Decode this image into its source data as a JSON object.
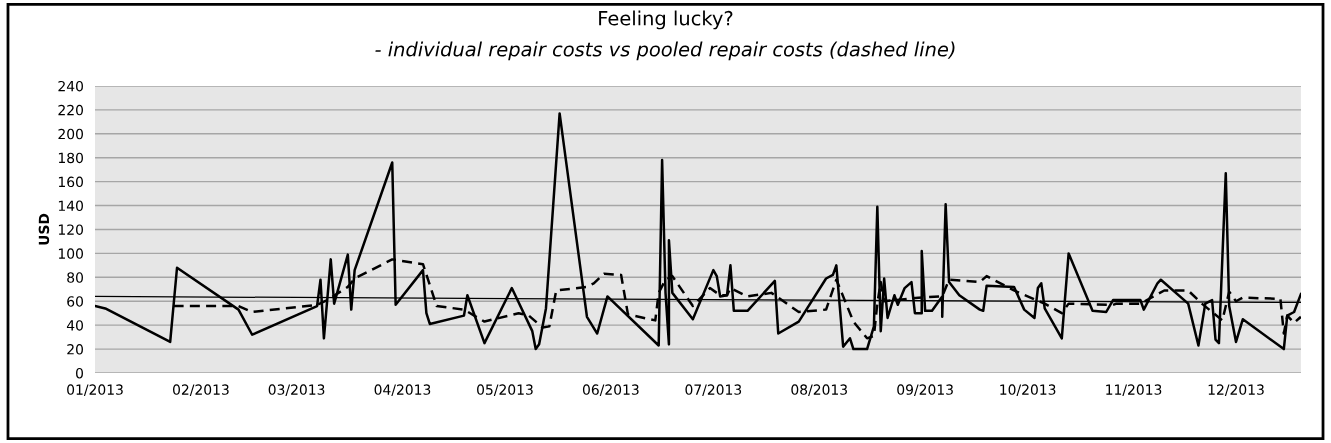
{
  "chart_data": {
    "type": "line",
    "title": "Feeling lucky?",
    "subtitle": "- individual repair costs vs pooled repair costs (dashed line)",
    "ylabel": "USD",
    "xlim": [
      "2013-01-01",
      "2013-12-20"
    ],
    "xticks": [
      {
        "value": "2013-01-01",
        "label": "01/2013"
      },
      {
        "value": "2013-02-01",
        "label": "02/2013"
      },
      {
        "value": "2013-03-01",
        "label": "03/2013"
      },
      {
        "value": "2013-04-01",
        "label": "04/2013"
      },
      {
        "value": "2013-05-01",
        "label": "05/2013"
      },
      {
        "value": "2013-06-01",
        "label": "06/2013"
      },
      {
        "value": "2013-07-01",
        "label": "07/2013"
      },
      {
        "value": "2013-08-01",
        "label": "08/2013"
      },
      {
        "value": "2013-09-01",
        "label": "09/2013"
      },
      {
        "value": "2013-10-01",
        "label": "10/2013"
      },
      {
        "value": "2013-11-01",
        "label": "11/2013"
      },
      {
        "value": "2013-12-01",
        "label": "12/2013"
      }
    ],
    "ylim": [
      0,
      240
    ],
    "yticks": [
      0,
      20,
      40,
      60,
      80,
      100,
      120,
      140,
      160,
      180,
      200,
      220,
      240
    ],
    "grid": "y",
    "legend": false,
    "series": [
      {
        "color": "#000000",
        "line_style": "solid",
        "x": [
          "2013-01-01",
          "2013-01-04",
          "2013-01-23",
          "2013-01-25",
          "2013-02-12",
          "2013-02-16",
          "2013-03-07",
          "2013-03-08",
          "2013-03-09",
          "2013-03-11",
          "2013-03-12",
          "2013-03-16",
          "2013-03-17",
          "2013-03-18",
          "2013-03-29",
          "2013-03-30",
          "2013-04-07",
          "2013-04-08",
          "2013-04-09",
          "2013-04-19",
          "2013-04-20",
          "2013-04-25",
          "2013-05-03",
          "2013-05-09",
          "2013-05-10",
          "2013-05-11",
          "2013-05-13",
          "2013-05-17",
          "2013-05-25",
          "2013-05-28",
          "2013-05-31",
          "2013-06-15",
          "2013-06-16",
          "2013-06-17",
          "2013-06-18",
          "2013-06-18",
          "2013-06-19",
          "2013-06-25",
          "2013-07-01",
          "2013-07-02",
          "2013-07-03",
          "2013-07-05",
          "2013-07-06",
          "2013-07-07",
          "2013-07-11",
          "2013-07-19",
          "2013-07-20",
          "2013-07-26",
          "2013-08-03",
          "2013-08-05",
          "2013-08-06",
          "2013-08-07",
          "2013-08-08",
          "2013-08-10",
          "2013-08-11",
          "2013-08-15",
          "2013-08-17",
          "2013-08-18",
          "2013-08-19",
          "2013-08-20",
          "2013-08-21",
          "2013-08-23",
          "2013-08-24",
          "2013-08-26",
          "2013-08-28",
          "2013-08-29",
          "2013-08-31",
          "2013-08-31",
          "2013-09-01",
          "2013-09-03",
          "2013-09-06",
          "2013-09-06",
          "2013-09-07",
          "2013-09-08",
          "2013-09-11",
          "2013-09-17",
          "2013-09-18",
          "2013-09-19",
          "2013-09-27",
          "2013-09-30",
          "2013-10-03",
          "2013-10-04",
          "2013-10-05",
          "2013-10-06",
          "2013-10-11",
          "2013-10-13",
          "2013-10-20",
          "2013-10-24",
          "2013-10-26",
          "2013-11-03",
          "2013-11-04",
          "2013-11-08",
          "2013-11-09",
          "2013-11-17",
          "2013-11-20",
          "2013-11-22",
          "2013-11-24",
          "2013-11-25",
          "2013-11-26",
          "2013-11-28",
          "2013-11-29",
          "2013-12-01",
          "2013-12-03",
          "2013-12-15",
          "2013-12-16",
          "2013-12-18",
          "2013-12-20"
        ],
        "values": [
          56,
          54,
          26,
          88,
          53,
          32,
          56,
          78,
          29,
          95,
          58,
          99,
          53,
          86,
          176,
          57,
          86,
          50,
          41,
          48,
          65,
          25,
          71,
          35,
          20,
          24,
          54,
          217,
          47,
          33,
          64,
          23,
          178,
          67,
          24,
          111,
          67,
          45,
          86,
          81,
          64,
          65,
          90,
          52,
          52,
          77,
          33,
          43,
          79,
          82,
          90,
          56,
          22,
          29,
          20,
          20,
          39,
          139,
          35,
          79,
          46,
          65,
          57,
          71,
          76,
          50,
          50,
          102,
          52,
          52,
          64,
          47,
          141,
          76,
          65,
          53,
          52,
          73,
          72,
          53,
          46,
          71,
          75,
          54,
          29,
          100,
          52,
          51,
          61,
          61,
          53,
          75,
          78,
          58,
          23,
          58,
          61,
          28,
          25,
          167,
          56,
          26,
          45,
          20,
          48,
          51,
          66
        ]
      },
      {
        "color": "#000000",
        "line_style": "dashed",
        "x": [
          "2013-01-24",
          "2013-02-12",
          "2013-02-16",
          "2013-03-07",
          "2013-03-10",
          "2013-03-16",
          "2013-03-18",
          "2013-03-29",
          "2013-04-07",
          "2013-04-11",
          "2013-04-19",
          "2013-04-25",
          "2013-05-05",
          "2013-05-08",
          "2013-05-12",
          "2013-05-14",
          "2013-05-16",
          "2013-05-25",
          "2013-05-27",
          "2013-05-30",
          "2013-06-04",
          "2013-06-06",
          "2013-06-14",
          "2013-06-15",
          "2013-06-17",
          "2013-06-19",
          "2013-06-25",
          "2013-06-30",
          "2013-07-03",
          "2013-07-05",
          "2013-07-06",
          "2013-07-11",
          "2013-07-18",
          "2013-07-26",
          "2013-08-03",
          "2013-08-06",
          "2013-08-11",
          "2013-08-15",
          "2013-08-17",
          "2013-08-18",
          "2013-08-19",
          "2013-08-20",
          "2013-08-30",
          "2013-09-06",
          "2013-09-08",
          "2013-09-17",
          "2013-09-19",
          "2013-09-27",
          "2013-10-06",
          "2013-10-11",
          "2013-10-13",
          "2013-10-26",
          "2013-10-27",
          "2013-11-03",
          "2013-11-10",
          "2013-11-17",
          "2013-11-21",
          "2013-11-27",
          "2013-11-29",
          "2013-12-01",
          "2013-12-03",
          "2013-12-14",
          "2013-12-15",
          "2013-12-16",
          "2013-12-18",
          "2013-12-20"
        ],
        "values": [
          56,
          56,
          51,
          57,
          61,
          72,
          79,
          95,
          91,
          56,
          53,
          43,
          50,
          48,
          38,
          39,
          69,
          72,
          75,
          83,
          82,
          49,
          44,
          67,
          78,
          81,
          56,
          71,
          65,
          65,
          71,
          64,
          67,
          51,
          53,
          78,
          43,
          29,
          31,
          58,
          76,
          60,
          63,
          64,
          78,
          76,
          81,
          69,
          58,
          50,
          58,
          57,
          58,
          58,
          69,
          69,
          58,
          44,
          68,
          60,
          63,
          62,
          33,
          48,
          42,
          47
        ]
      },
      {
        "type": "line",
        "color": "#000000",
        "line_style": "solid",
        "x": [
          "2013-01-01",
          "2013-12-20"
        ],
        "values": [
          64,
          59
        ]
      }
    ]
  }
}
